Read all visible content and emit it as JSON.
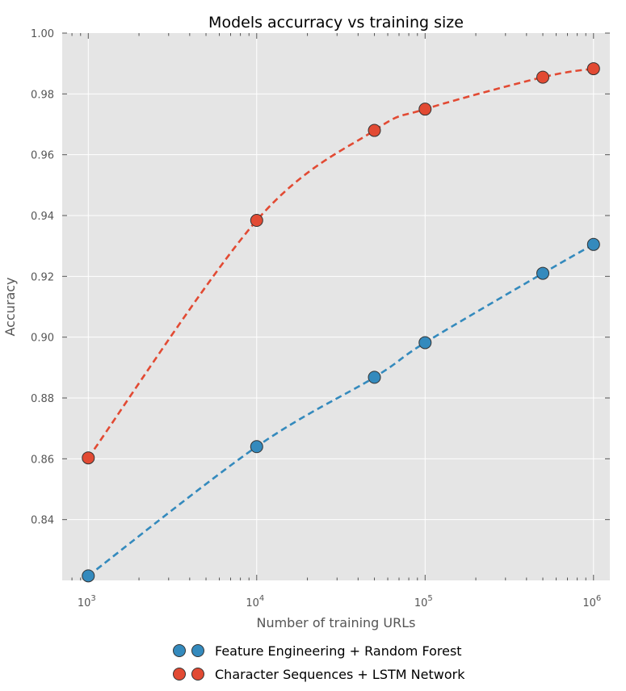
{
  "chart_data": {
    "type": "line",
    "title": "Models accurracy vs training size",
    "xlabel": "Number of training URLs",
    "ylabel": "Accuracy",
    "xscale": "log",
    "xlim": [
      700,
      1250000
    ],
    "ylim": [
      0.82,
      1.0
    ],
    "xticks": [
      {
        "value": 1000,
        "base": "10",
        "exp": "3"
      },
      {
        "value": 10000,
        "base": "10",
        "exp": "4"
      },
      {
        "value": 100000,
        "base": "10",
        "exp": "5"
      },
      {
        "value": 1000000,
        "base": "10",
        "exp": "6"
      }
    ],
    "yticks": [
      {
        "value": 0.84,
        "label": "0.84"
      },
      {
        "value": 0.86,
        "label": "0.86"
      },
      {
        "value": 0.88,
        "label": "0.88"
      },
      {
        "value": 0.9,
        "label": "0.90"
      },
      {
        "value": 0.92,
        "label": "0.92"
      },
      {
        "value": 0.94,
        "label": "0.94"
      },
      {
        "value": 0.96,
        "label": "0.96"
      },
      {
        "value": 0.98,
        "label": "0.98"
      },
      {
        "value": 1.0,
        "label": "1.00"
      }
    ],
    "grid": true,
    "legend_position": "below",
    "series": [
      {
        "name": "Feature Engineering + Random Forest",
        "color": "#348abd",
        "x": [
          1000,
          10000,
          50000,
          100000,
          500000,
          1000000
        ],
        "y": [
          0.8215,
          0.864,
          0.8868,
          0.8982,
          0.921,
          0.9305
        ]
      },
      {
        "name": "Character Sequences + LSTM Network",
        "color": "#e24a33",
        "x": [
          1000,
          10000,
          50000,
          100000,
          500000,
          1000000
        ],
        "y": [
          0.8603,
          0.9384,
          0.968,
          0.975,
          0.9855,
          0.9883
        ]
      }
    ]
  }
}
